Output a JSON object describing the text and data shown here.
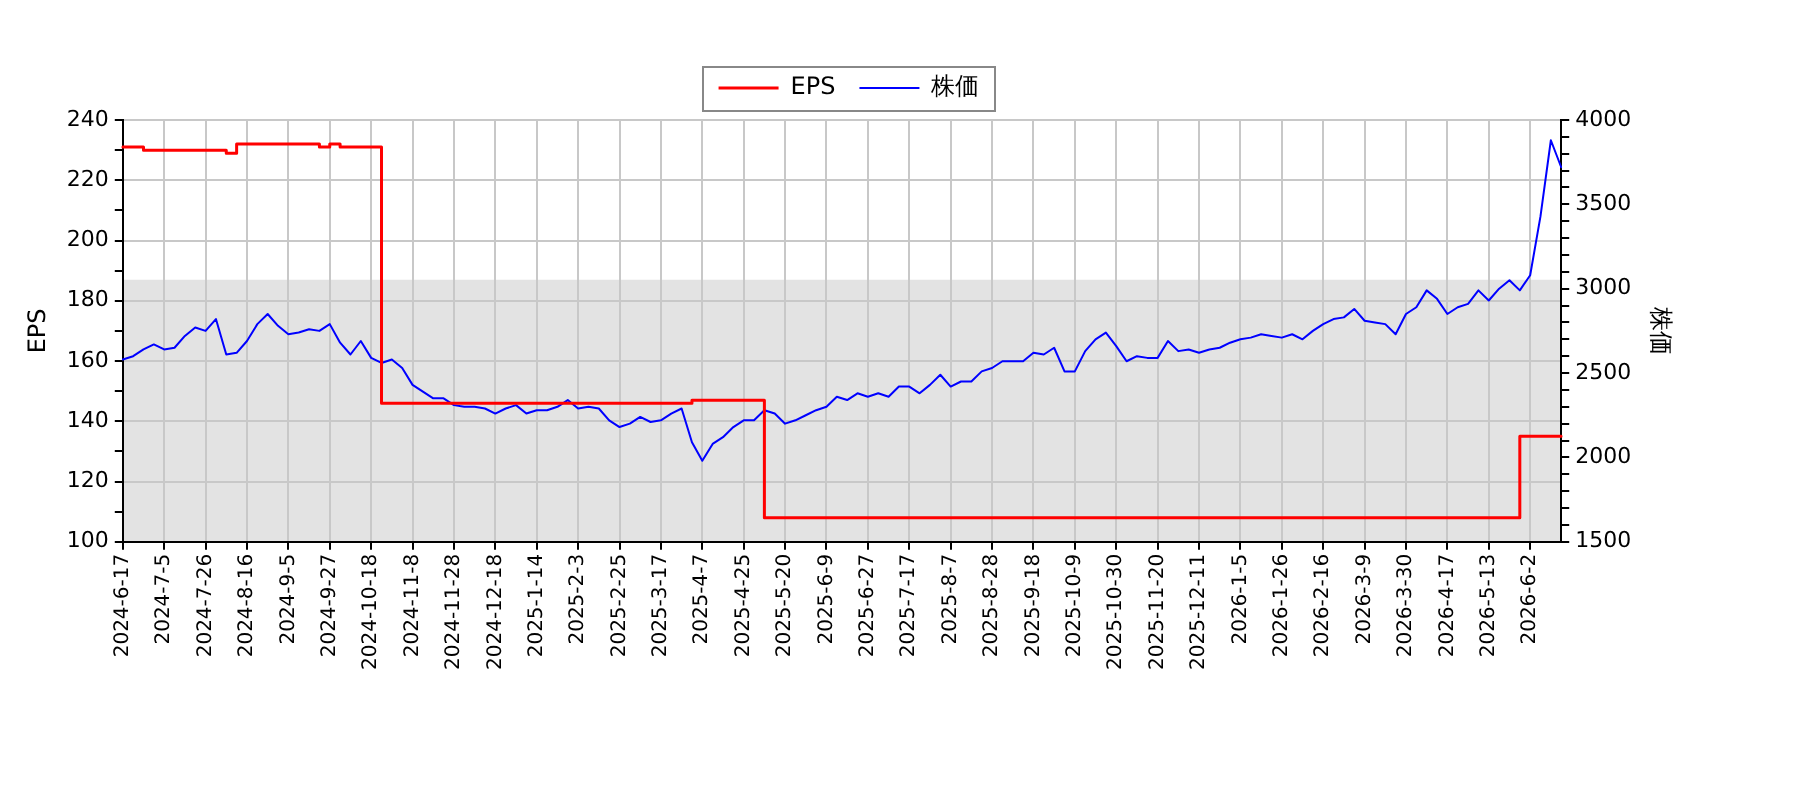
{
  "chart_data": {
    "type": "line",
    "categories": [
      "2024-6-17",
      null,
      null,
      null,
      "2024-7-5",
      null,
      null,
      null,
      "2024-7-26",
      null,
      null,
      null,
      "2024-8-16",
      null,
      null,
      null,
      "2024-9-5",
      null,
      null,
      null,
      "2024-9-27",
      null,
      null,
      null,
      "2024-10-18",
      null,
      null,
      null,
      "2024-11-8",
      null,
      null,
      null,
      "2024-11-28",
      null,
      null,
      null,
      "2024-12-18",
      null,
      null,
      null,
      "2025-1-14",
      null,
      null,
      null,
      "2025-2-3",
      null,
      null,
      null,
      "2025-2-25",
      null,
      null,
      null,
      "2025-3-17",
      null,
      null,
      null,
      "2025-4-7",
      null,
      null,
      null,
      "2025-4-25",
      null,
      null,
      null,
      "2025-5-20",
      null,
      null,
      null,
      "2025-6-9",
      null,
      null,
      null,
      "2025-6-27",
      null,
      null,
      null,
      "2025-7-17",
      null,
      null,
      null,
      "2025-8-7",
      null,
      null,
      null,
      "2025-8-28",
      null,
      null,
      null,
      "2025-9-18",
      null,
      null,
      null,
      "2025-10-9",
      null,
      null,
      null,
      "2025-10-30",
      null,
      null,
      null,
      "2025-11-20",
      null,
      null,
      null,
      "2025-12-11",
      null,
      null,
      null,
      "2026-1-5",
      null,
      null,
      null,
      "2026-1-26",
      null,
      null,
      null,
      "2026-2-16",
      null,
      null,
      null,
      "2026-3-9",
      null,
      null,
      null,
      "2026-3-30",
      null,
      null,
      null,
      "2026-4-17",
      null,
      null,
      null,
      "2026-5-13",
      null,
      null,
      null,
      "2026-6-2",
      null,
      null,
      null
    ],
    "series": [
      {
        "name": "EPS",
        "type": "step",
        "color": "#ff0000",
        "values": [
          231,
          231,
          230,
          230,
          230,
          230,
          230,
          230,
          230,
          230,
          229,
          232,
          232,
          232,
          232,
          232,
          232,
          232,
          232,
          231,
          232,
          231,
          231,
          231,
          231,
          146,
          146,
          146,
          146,
          146,
          146,
          146,
          146,
          146,
          146,
          146,
          146,
          146,
          146,
          146,
          146,
          146,
          146,
          146,
          146,
          146,
          146,
          146,
          146,
          146,
          146,
          146,
          146,
          146,
          146,
          147,
          147,
          147,
          147,
          147,
          147,
          147,
          108,
          108,
          108,
          108,
          108,
          108,
          108,
          108,
          108,
          108,
          108,
          108,
          108,
          108,
          108,
          108,
          108,
          108,
          108,
          108,
          108,
          108,
          108,
          108,
          108,
          108,
          108,
          108,
          108,
          108,
          108,
          108,
          108,
          108,
          108,
          108,
          108,
          108,
          108,
          108,
          108,
          108,
          108,
          108,
          108,
          108,
          108,
          108,
          108,
          108,
          108,
          108,
          108,
          108,
          108,
          108,
          108,
          108,
          108,
          108,
          108,
          108,
          108,
          108,
          108,
          108,
          108,
          108,
          108,
          108,
          108,
          108,
          108,
          135,
          135,
          135,
          135,
          135
        ]
      },
      {
        "name": "株価",
        "type": "line",
        "color": "#0000ff",
        "axis": "y2",
        "values": [
          2580,
          2600,
          2640,
          2670,
          2640,
          2650,
          2720,
          2770,
          2750,
          2820,
          2610,
          2620,
          2690,
          2790,
          2850,
          2780,
          2730,
          2740,
          2760,
          2750,
          2790,
          2680,
          2610,
          2690,
          2590,
          2560,
          2580,
          2530,
          2430,
          2390,
          2350,
          2350,
          2310,
          2300,
          2300,
          2290,
          2260,
          2290,
          2310,
          2260,
          2280,
          2280,
          2300,
          2340,
          2290,
          2300,
          2290,
          2220,
          2180,
          2200,
          2240,
          2210,
          2220,
          2260,
          2290,
          2090,
          1980,
          2080,
          2120,
          2180,
          2220,
          2220,
          2280,
          2260,
          2200,
          2220,
          2250,
          2280,
          2300,
          2360,
          2340,
          2380,
          2360,
          2380,
          2360,
          2420,
          2420,
          2380,
          2430,
          2490,
          2420,
          2450,
          2450,
          2510,
          2530,
          2570,
          2570,
          2570,
          2620,
          2610,
          2650,
          2510,
          2510,
          2630,
          2700,
          2740,
          2660,
          2570,
          2600,
          2590,
          2590,
          2690,
          2630,
          2640,
          2620,
          2640,
          2650,
          2680,
          2700,
          2710,
          2730,
          2720,
          2710,
          2730,
          2700,
          2750,
          2790,
          2820,
          2830,
          2880,
          2810,
          2800,
          2790,
          2730,
          2850,
          2890,
          2990,
          2940,
          2850,
          2890,
          2910,
          2990,
          2930,
          3000,
          3050,
          2990,
          3080,
          3430,
          3880,
          3720
        ]
      }
    ],
    "ylabel": "EPS",
    "y2label": "株価",
    "ylim": [
      100,
      240
    ],
    "yticks": [
      100,
      {
        "value": 110,
        "label": null
      },
      120,
      {
        "value": 130,
        "label": null
      },
      140,
      {
        "value": 150,
        "label": null
      },
      160,
      {
        "value": 170,
        "label": null
      },
      180,
      {
        "value": 190,
        "label": null
      },
      200,
      {
        "value": 210,
        "label": null
      },
      220,
      {
        "value": 230,
        "label": null
      },
      240
    ],
    "y2lim": [
      1500,
      4000
    ],
    "y2ticks": [
      1500,
      {
        "value": 1600,
        "label": null
      },
      {
        "value": 1700,
        "label": null
      },
      {
        "value": 1800,
        "label": null
      },
      {
        "value": 1900,
        "label": null
      },
      2000,
      {
        "value": 2100,
        "label": null
      },
      {
        "value": 2200,
        "label": null
      },
      {
        "value": 2300,
        "label": null
      },
      {
        "value": 2400,
        "label": null
      },
      2500,
      {
        "value": 2600,
        "label": null
      },
      {
        "value": 2700,
        "label": null
      },
      {
        "value": 2800,
        "label": null
      },
      {
        "value": 2900,
        "label": null
      },
      3000,
      {
        "value": 3100,
        "label": null
      },
      {
        "value": 3200,
        "label": null
      },
      {
        "value": 3300,
        "label": null
      },
      {
        "value": 3400,
        "label": null
      },
      3500,
      {
        "value": 3600,
        "label": null
      },
      {
        "value": 3700,
        "label": null
      },
      {
        "value": 3800,
        "label": null
      },
      {
        "value": 3900,
        "label": null
      },
      4000
    ],
    "grid": true,
    "legend": "top",
    "bands": [
      {
        "axis": "y",
        "from": 100,
        "to": 187,
        "color": "#e3e3e3"
      }
    ]
  }
}
